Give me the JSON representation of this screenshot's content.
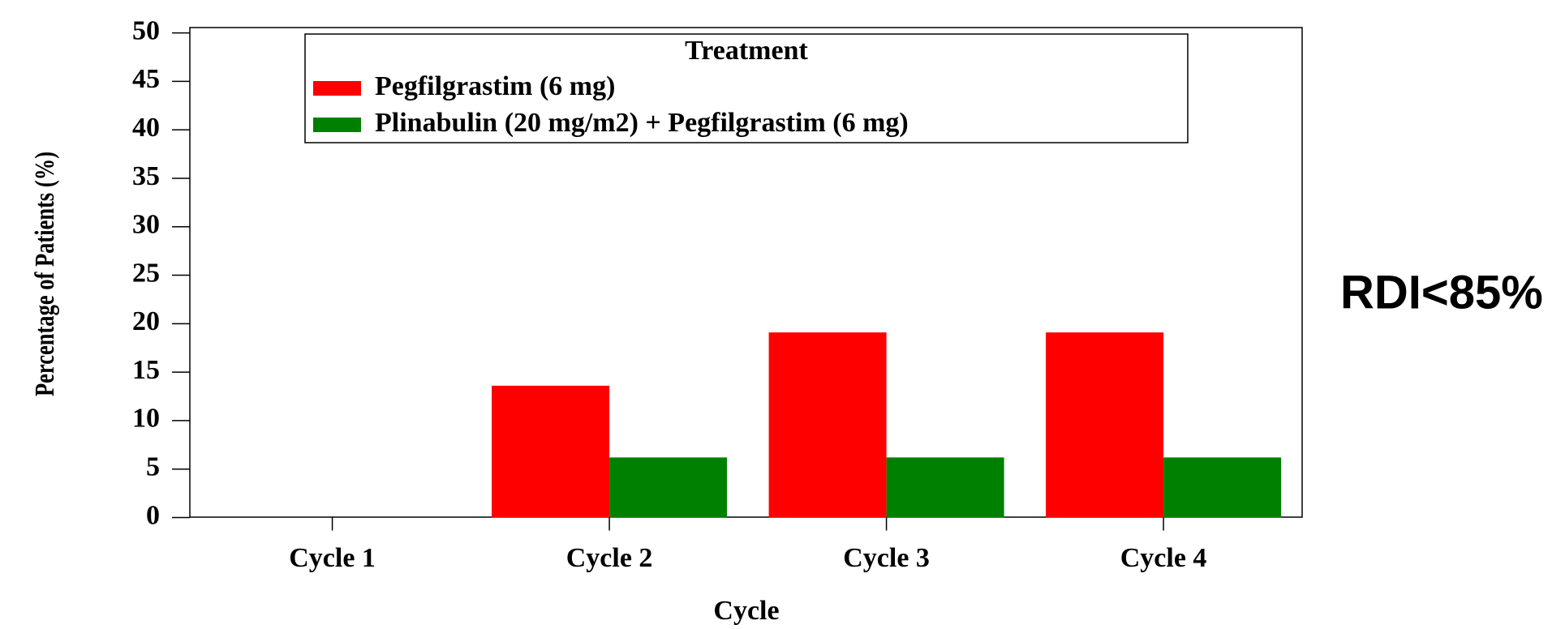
{
  "chart_data": {
    "type": "bar",
    "xlabel": "Cycle",
    "ylabel": "Percentage of Patients (%)",
    "annotation": "RDI<85%",
    "legend_title": "Treatment",
    "legend_position": "upper center",
    "categories": [
      "Cycle 1",
      "Cycle 2",
      "Cycle 3",
      "Cycle 4"
    ],
    "series": [
      {
        "name": "Pegfilgrastim (6 mg)",
        "color": "#ff0000",
        "values": [
          0,
          13.6,
          19.1,
          19.1
        ]
      },
      {
        "name": "Plinabulin (20 mg/m2) + Pegfilgrastim (6 mg)",
        "color": "#008000",
        "values": [
          0,
          6.2,
          6.2,
          6.2
        ]
      }
    ],
    "ylim": [
      0,
      50
    ],
    "yticks": [
      0,
      5,
      10,
      15,
      20,
      25,
      30,
      35,
      40,
      45,
      50
    ],
    "grid": false
  }
}
